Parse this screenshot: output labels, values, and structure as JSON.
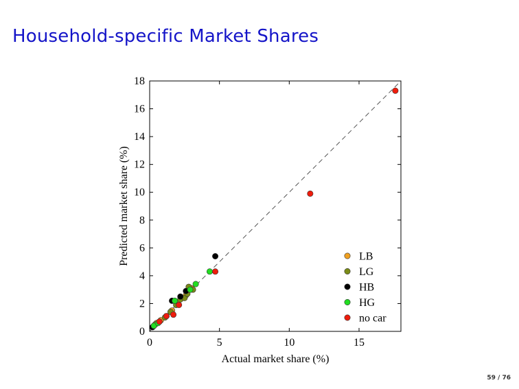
{
  "slide": {
    "title": "Household-specific Market Shares",
    "page_number": "59 / 76"
  },
  "chart_data": {
    "type": "scatter",
    "title": "",
    "xlabel": "Actual market share (%)",
    "ylabel": "Predicted market share (%)",
    "xlim": [
      0,
      18
    ],
    "ylim": [
      0,
      18
    ],
    "xticks": [
      0,
      5,
      10,
      15
    ],
    "yticks": [
      0,
      2,
      4,
      6,
      8,
      10,
      12,
      14,
      16,
      18
    ],
    "grid": false,
    "legend_position": "bottom-right",
    "reference_line": {
      "style": "dashed",
      "from": [
        0,
        0
      ],
      "to": [
        18,
        18
      ]
    },
    "series": [
      {
        "name": "LB",
        "color": "#f0a020",
        "points": [
          [
            0.3,
            0.4
          ],
          [
            0.5,
            0.6
          ],
          [
            0.8,
            0.8
          ],
          [
            1.2,
            1.1
          ],
          [
            1.6,
            1.5
          ],
          [
            2.0,
            2.0
          ],
          [
            2.3,
            2.4
          ],
          [
            2.6,
            2.6
          ],
          [
            2.9,
            3.0
          ],
          [
            3.0,
            3.1
          ]
        ]
      },
      {
        "name": "LG",
        "color": "#7b8c18",
        "points": [
          [
            0.4,
            0.5
          ],
          [
            0.7,
            0.7
          ],
          [
            1.1,
            1.0
          ],
          [
            1.5,
            1.4
          ],
          [
            1.9,
            1.9
          ],
          [
            2.2,
            2.3
          ],
          [
            2.5,
            2.4
          ],
          [
            2.7,
            2.7
          ],
          [
            2.8,
            3.2
          ],
          [
            3.1,
            3.0
          ]
        ]
      },
      {
        "name": "HB",
        "color": "#000000",
        "points": [
          [
            0.2,
            0.3
          ],
          [
            1.6,
            2.2
          ],
          [
            2.2,
            2.5
          ],
          [
            2.6,
            2.9
          ],
          [
            4.7,
            5.4
          ]
        ]
      },
      {
        "name": "HG",
        "color": "#22dd22",
        "points": [
          [
            0.3,
            0.4
          ],
          [
            0.6,
            0.6
          ],
          [
            1.8,
            2.2
          ],
          [
            2.9,
            3.0
          ],
          [
            3.3,
            3.4
          ],
          [
            4.3,
            4.3
          ]
        ]
      },
      {
        "name": "no car",
        "color": "#ee1c0c",
        "points": [
          [
            0.7,
            0.7
          ],
          [
            1.2,
            1.1
          ],
          [
            1.7,
            1.2
          ],
          [
            2.1,
            1.9
          ],
          [
            4.7,
            4.3
          ],
          [
            11.5,
            9.9
          ],
          [
            17.6,
            17.3
          ]
        ]
      }
    ]
  }
}
